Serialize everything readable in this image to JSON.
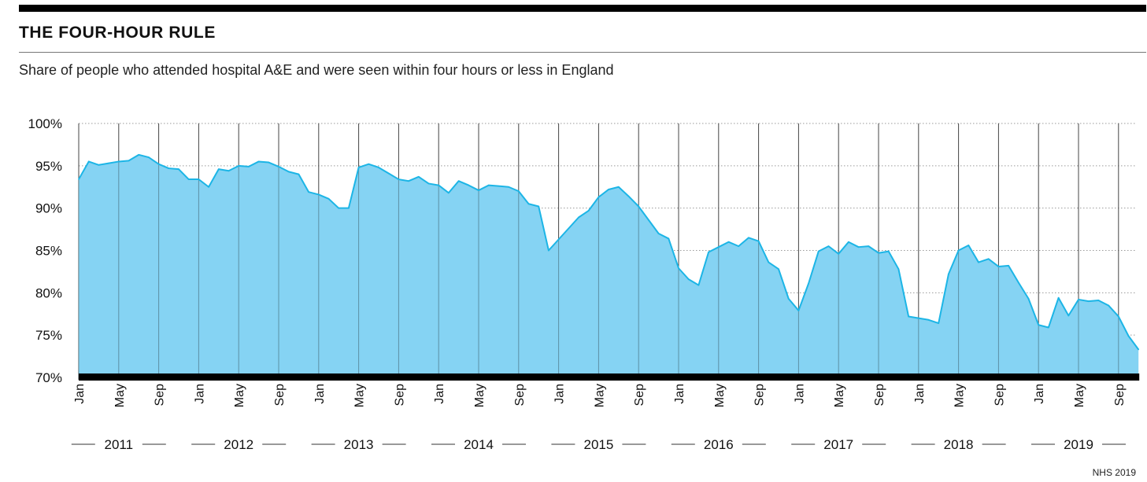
{
  "header": {
    "title": "THE FOUR-HOUR RULE",
    "subtitle": "Share of people who attended hospital A&E and were seen within four hours or less in England"
  },
  "source": "NHS 2019",
  "colors": {
    "fill": "#85d3f3",
    "line": "#1cb5e6",
    "baseline": "#000000",
    "grid": "#9a9a9a"
  },
  "chart_data": {
    "type": "area",
    "title": "THE FOUR-HOUR RULE",
    "subtitle": "Share of people who attended hospital A&E and were seen within four hours or less in England",
    "ylim": [
      70,
      100
    ],
    "y_ticks": [
      70,
      75,
      80,
      85,
      90,
      95,
      100
    ],
    "y_tick_labels": [
      "70%",
      "75%",
      "80%",
      "85%",
      "90%",
      "95%",
      "100%"
    ],
    "x_start": "2011-01",
    "x_end": "2019-11",
    "x_tick_labels": [
      "Jan",
      "May",
      "Sep"
    ],
    "years": [
      "2011",
      "2012",
      "2013",
      "2014",
      "2015",
      "2016",
      "2017",
      "2018",
      "2019"
    ],
    "grid": true,
    "series": [
      {
        "values": [
          93.4,
          95.5,
          95.1,
          95.3,
          95.5,
          95.6,
          96.3,
          96.0,
          95.2,
          94.7,
          94.6,
          93.4,
          93.4,
          92.5,
          94.6,
          94.4,
          95.0,
          94.9,
          95.5,
          95.4,
          94.9,
          94.3,
          94.0,
          91.9,
          91.6,
          91.1,
          90.0,
          90.0,
          94.8,
          95.2,
          94.8,
          94.1,
          93.4,
          93.2,
          93.7,
          92.9,
          92.7,
          91.8,
          93.2,
          92.7,
          92.1,
          92.7,
          92.6,
          92.5,
          92.0,
          90.5,
          90.2,
          85.0,
          86.3,
          87.6,
          88.9,
          89.7,
          91.3,
          92.2,
          92.5,
          91.4,
          90.2,
          88.6,
          87.0,
          86.4,
          82.9,
          81.6,
          80.9,
          84.8,
          85.4,
          86.0,
          85.5,
          86.5,
          86.1,
          83.6,
          82.8,
          79.3,
          77.9,
          81.1,
          84.9,
          85.5,
          84.6,
          86.0,
          85.4,
          85.5,
          84.7,
          84.9,
          82.8,
          77.2,
          77.0,
          76.8,
          76.4,
          82.2,
          85.0,
          85.6,
          83.6,
          84.0,
          83.1,
          83.2,
          81.2,
          79.3,
          76.2,
          75.9,
          79.4,
          77.3,
          79.2,
          79.0,
          79.1,
          78.5,
          77.2,
          74.9,
          73.3
        ]
      }
    ]
  }
}
